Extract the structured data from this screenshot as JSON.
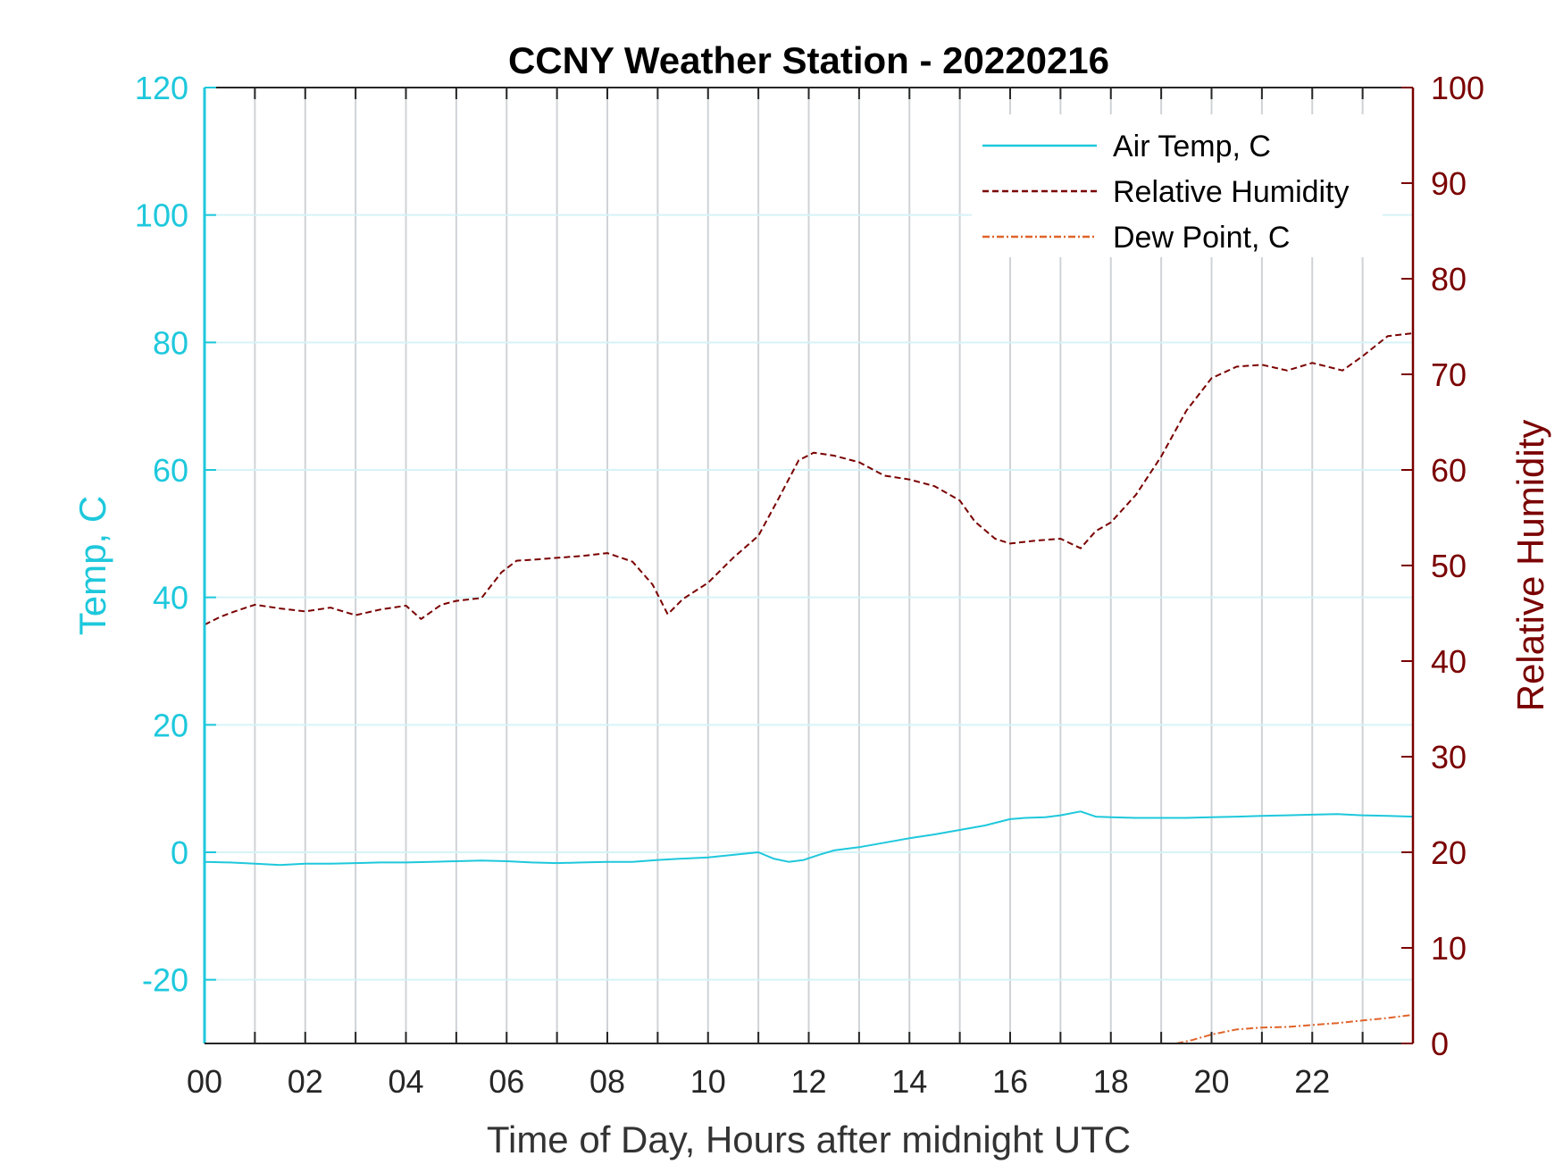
{
  "chart_data": {
    "type": "line",
    "title": "CCNY Weather Station - 20220216",
    "xlabel": "Time of Day, Hours after midnight UTC",
    "ylabel_left": "Temp, C",
    "ylabel_right": "Relative Humidity",
    "xlim": [
      0,
      24
    ],
    "ylim_left": [
      -30,
      120
    ],
    "ylim_right": [
      0,
      100
    ],
    "x_ticks": [
      0,
      2,
      4,
      6,
      8,
      10,
      12,
      14,
      16,
      18,
      20,
      22
    ],
    "x_tick_labels": [
      "00",
      "02",
      "04",
      "06",
      "08",
      "10",
      "12",
      "14",
      "16",
      "18",
      "20",
      "22"
    ],
    "y_left_ticks": [
      -20,
      0,
      20,
      40,
      60,
      80,
      100,
      120
    ],
    "y_left_tick_labels": [
      "-20",
      "0",
      "20",
      "40",
      "60",
      "80",
      "100",
      "120"
    ],
    "y_right_ticks": [
      0,
      10,
      20,
      30,
      40,
      50,
      60,
      70,
      80,
      90,
      100
    ],
    "y_right_tick_labels": [
      "0",
      "10",
      "20",
      "30",
      "40",
      "50",
      "60",
      "70",
      "80",
      "90",
      "100"
    ],
    "grid": true,
    "legend_position": "top-right",
    "colors": {
      "left_axis": "#1ec8dc",
      "right_axis": "#7a0000",
      "dew": "#e0642a",
      "vgrid": "#cfd3d6",
      "hgrid": "#d6f3f7"
    },
    "series": [
      {
        "name": "Air Temp, C",
        "axis": "left",
        "style": "solid",
        "color": "#1ec8dc",
        "x": [
          0,
          0.5,
          1,
          1.5,
          2,
          2.5,
          3,
          3.5,
          4,
          4.5,
          5,
          5.5,
          6,
          6.5,
          7,
          7.5,
          8,
          8.5,
          9,
          9.5,
          10,
          10.5,
          11,
          11.3,
          11.6,
          11.9,
          12.2,
          12.5,
          13,
          13.5,
          14,
          14.5,
          15,
          15.5,
          16,
          16.3,
          16.7,
          17,
          17.4,
          17.7,
          18,
          18.5,
          19,
          19.5,
          20,
          20.5,
          21,
          21.5,
          22,
          22.5,
          23,
          23.5,
          24
        ],
        "y": [
          -1.5,
          -1.6,
          -1.8,
          -2.0,
          -1.8,
          -1.8,
          -1.7,
          -1.6,
          -1.6,
          -1.5,
          -1.4,
          -1.3,
          -1.4,
          -1.6,
          -1.7,
          -1.6,
          -1.5,
          -1.5,
          -1.2,
          -1.0,
          -0.8,
          -0.4,
          0.0,
          -1.0,
          -1.5,
          -1.2,
          -0.4,
          0.3,
          0.8,
          1.5,
          2.2,
          2.8,
          3.5,
          4.2,
          5.2,
          5.4,
          5.5,
          5.8,
          6.4,
          5.6,
          5.5,
          5.4,
          5.4,
          5.4,
          5.5,
          5.6,
          5.7,
          5.8,
          5.9,
          6.0,
          5.8,
          5.7,
          5.6
        ]
      },
      {
        "name": "Relative Humidity",
        "axis": "right",
        "style": "dashed",
        "color": "#7a0000",
        "x": [
          0,
          0.3,
          0.6,
          1,
          1.5,
          2,
          2.5,
          3,
          3.5,
          4,
          4.3,
          4.7,
          5,
          5.5,
          5.9,
          6.2,
          6.5,
          7,
          7.5,
          8,
          8.5,
          8.9,
          9.2,
          9.5,
          10,
          10.5,
          11,
          11.4,
          11.8,
          12.1,
          12.5,
          13,
          13.5,
          14,
          14.5,
          15,
          15.3,
          15.7,
          16,
          16.5,
          17,
          17.4,
          17.7,
          18,
          18.5,
          19,
          19.5,
          20,
          20.5,
          21,
          21.5,
          22,
          22.3,
          22.6,
          23,
          23.5,
          24
        ],
        "y": [
          43.8,
          44.6,
          45.2,
          45.9,
          45.5,
          45.2,
          45.6,
          44.8,
          45.4,
          45.8,
          44.4,
          45.9,
          46.3,
          46.6,
          49.3,
          50.5,
          50.6,
          50.8,
          51.0,
          51.3,
          50.4,
          48.0,
          44.9,
          46.5,
          48.2,
          50.8,
          53.1,
          57.0,
          61.0,
          61.8,
          61.5,
          60.8,
          59.4,
          59.0,
          58.3,
          56.8,
          54.6,
          52.8,
          52.3,
          52.6,
          52.8,
          51.8,
          53.6,
          54.5,
          57.4,
          61.4,
          66.2,
          69.6,
          70.8,
          71.0,
          70.4,
          71.2,
          70.8,
          70.4,
          71.9,
          74.0,
          74.3
        ]
      },
      {
        "name": "Dew Point, C",
        "axis": "left",
        "style": "dashdot",
        "color": "#e0642a",
        "x": [
          19.3,
          19.6,
          20,
          20.5,
          21,
          21.5,
          22,
          22.5,
          23,
          23.5,
          24
        ],
        "y": [
          -30,
          -29.5,
          -28.6,
          -27.8,
          -27.5,
          -27.4,
          -27.1,
          -26.8,
          -26.4,
          -26.0,
          -25.5
        ]
      }
    ]
  }
}
